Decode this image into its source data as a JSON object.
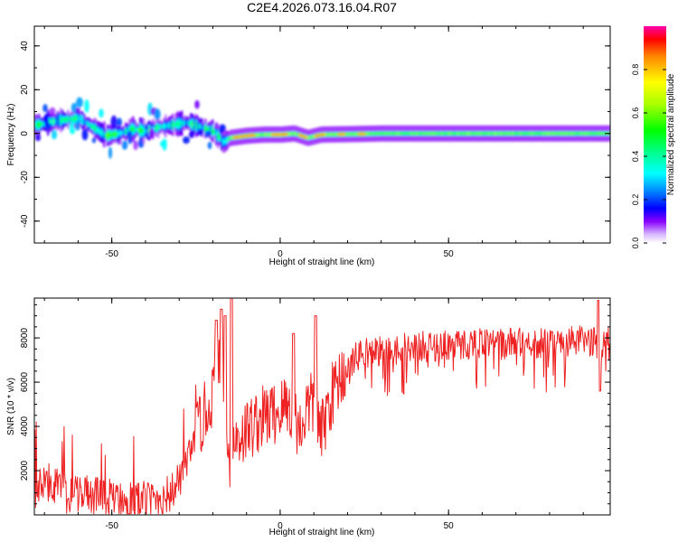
{
  "title": "C2E4.2026.073.16.04.R07",
  "colors": {
    "snr_line": "#ee2222",
    "frame": "#000000",
    "background": "#ffffff"
  },
  "chart_data": [
    {
      "type": "heatmap",
      "panel": "top",
      "title": "C2E4.2026.073.16.04.R07",
      "xlabel": "Height of straight line (km)",
      "ylabel": "Frequency (Hz)",
      "xlim": [
        -73,
        98
      ],
      "ylim": [
        -50,
        49
      ],
      "xticks": [
        -50,
        0,
        50
      ],
      "xtick_labels": [
        "-50",
        "0",
        "50"
      ],
      "yticks": [
        -40,
        -20,
        0,
        20,
        40
      ],
      "ytick_labels": [
        "-40",
        "-20",
        "0",
        "20",
        "40"
      ],
      "description_trace": "Doppler ridge: scattered energy near 0-8 Hz for heights -73 to -17 km, concentrated narrow band near 0 Hz above -15 km",
      "ridge": {
        "x": [
          -72,
          -66,
          -60,
          -56,
          -52,
          -48,
          -44,
          -40,
          -36,
          -32,
          -28,
          -24,
          -20,
          -17,
          -15,
          -10,
          -5,
          0,
          4,
          8,
          12,
          20,
          30,
          50,
          70,
          90,
          97
        ],
        "y": [
          4,
          6,
          7,
          3,
          -1,
          0,
          2,
          1,
          3,
          4,
          5,
          3,
          1,
          -4,
          -2,
          -1,
          -0.5,
          -0.5,
          0,
          -2,
          -0.5,
          -0.3,
          0,
          0,
          0,
          0,
          0
        ]
      },
      "colorbar": {
        "label": "Normalized spectral amplitude",
        "range": [
          0,
          1
        ],
        "ticks": [
          0.0,
          0.2,
          0.4,
          0.6,
          0.8
        ],
        "tick_labels": [
          "0.0",
          "0.2",
          "0.4",
          "0.6",
          "0.8"
        ]
      }
    },
    {
      "type": "line",
      "panel": "bottom",
      "xlabel": "Height of straight line (km)",
      "ylabel": "SNR (10 * v/v)",
      "xlim": [
        -73,
        98
      ],
      "ylim": [
        0,
        9800
      ],
      "xticks": [
        -50,
        0,
        50
      ],
      "xtick_labels": [
        "-50",
        "0",
        "50"
      ],
      "yticks": [
        2000,
        4000,
        6000,
        8000
      ],
      "ytick_labels": [
        "2000",
        "4000",
        "6000",
        "8000"
      ],
      "series": [
        {
          "name": "SNR",
          "x": [
            -73,
            -68,
            -63,
            -58,
            -53,
            -48,
            -43,
            -38,
            -33,
            -30,
            -27,
            -24,
            -21,
            -19,
            -17,
            -15,
            -13,
            -10,
            -7,
            -4,
            -1,
            2,
            4,
            6,
            8,
            10,
            12,
            15,
            18,
            21,
            24,
            28,
            32,
            36,
            40,
            45,
            50,
            55,
            60,
            65,
            70,
            75,
            80,
            85,
            90,
            93,
            95,
            97
          ],
          "y": [
            1200,
            1500,
            900,
            1000,
            700,
            800,
            600,
            700,
            900,
            1500,
            2500,
            4000,
            5000,
            6200,
            6800,
            2500,
            3500,
            3800,
            4200,
            4500,
            4600,
            5000,
            4600,
            3800,
            4900,
            5000,
            3500,
            5300,
            6300,
            6900,
            7300,
            7400,
            7500,
            7500,
            7600,
            7600,
            7700,
            7700,
            7800,
            7700,
            7800,
            7800,
            7700,
            7800,
            7900,
            7800,
            7700,
            7900
          ]
        }
      ],
      "peaks": {
        "x": [
          -19,
          -17.5,
          -16.3,
          -14.5,
          4,
          10.5,
          94.5,
          95
        ],
        "y": [
          8800,
          9300,
          9000,
          9800,
          8200,
          9000,
          9700,
          5600
        ]
      }
    }
  ]
}
